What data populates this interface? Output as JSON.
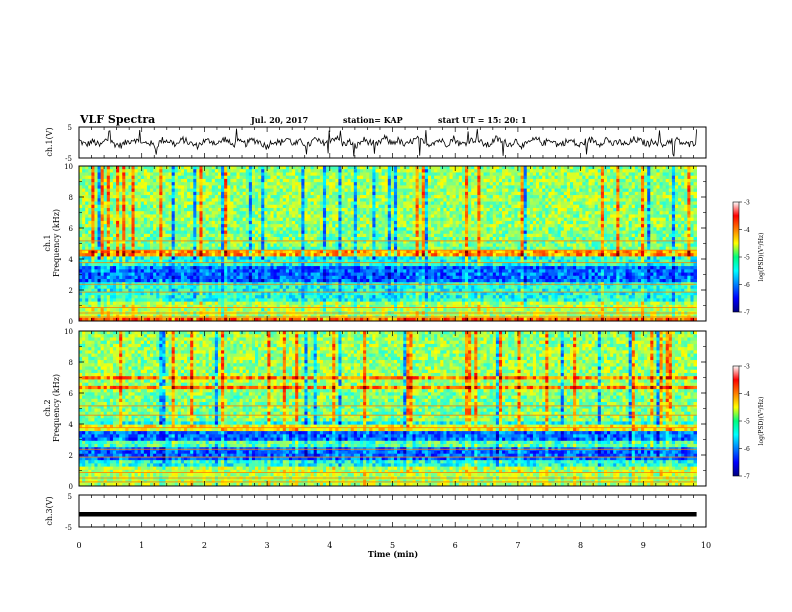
{
  "header": {
    "title": "VLF Spectra",
    "date": "Jul. 20, 2017",
    "station": "station= KAP",
    "start": "start UT = 15: 20: 1"
  },
  "chart_data": [
    {
      "type": "line",
      "name": "ch1-waveform",
      "ylabel": "ch.1(V)",
      "ylim": [
        -5,
        5
      ],
      "yticks": [
        "5",
        "-5"
      ],
      "xlim": [
        0,
        10
      ],
      "note_values": "envelope samples of the trace, volts",
      "values": [
        1.2,
        -1.5,
        0.8,
        -2.0,
        1.9,
        -0.6,
        -1.8,
        0.4,
        2.2,
        -1.1,
        0.3,
        -2.3,
        1.5,
        0.9,
        -1.4,
        1.8,
        -0.5,
        -2.1,
        0.7,
        1.1,
        -0.9,
        2.4,
        -1.6,
        0.2,
        -0.8,
        1.6,
        0.5,
        -2.4,
        1.0,
        -0.3,
        2.6,
        -1.2,
        0.6,
        -1.9,
        2.0,
        -0.7,
        1.3,
        3.0,
        -1.0,
        0.4,
        -2.2,
        1.7,
        0.1,
        -1.3,
        2.8,
        -0.4,
        1.4,
        -2.0,
        0.9,
        2.1,
        -1.7,
        0.3,
        1.5,
        -0.9,
        2.5,
        -1.4,
        0.6,
        1.9,
        -0.2,
        -1.8,
        2.3,
        0.8,
        -1.1,
        1.2,
        -2.5,
        0.5,
        1.8,
        -0.6,
        2.0,
        -1.5,
        0.2,
        1.1,
        -2.1,
        0.7,
        1.6,
        -0.8,
        2.2,
        -1.2,
        0.4,
        -1.7,
        1.9,
        0.6,
        -1.0,
        1.3,
        -2.2,
        0.9,
        1.7,
        -0.5,
        -1.4,
        0.8
      ]
    },
    {
      "type": "heatmap",
      "name": "ch1-spectrogram",
      "ylabel_line1": "ch.1",
      "ylabel_line2": "Frequency (kHz)",
      "ylim": [
        0,
        10
      ],
      "yticks": [
        "0",
        "2",
        "4",
        "6",
        "8",
        "10"
      ],
      "xlim": [
        0,
        10
      ],
      "colorbar_label": "log(PSD)(V²/Hz)",
      "colorbar_range": [
        -7,
        -3
      ],
      "colorbar_ticks": [
        "-3",
        "-4",
        "-5",
        "-6",
        "-7"
      ]
    },
    {
      "type": "heatmap",
      "name": "ch2-spectrogram",
      "ylabel_line1": "ch.2",
      "ylabel_line2": "Frequency (kHz)",
      "ylim": [
        0,
        10
      ],
      "yticks": [
        "0",
        "2",
        "4",
        "6",
        "8",
        "10"
      ],
      "xlim": [
        0,
        10
      ],
      "colorbar_label": "log(PSD)(V²/Hz)",
      "colorbar_range": [
        -7,
        -3
      ],
      "colorbar_ticks": [
        "-3",
        "-4",
        "-5",
        "-6",
        "-7"
      ]
    },
    {
      "type": "line",
      "name": "ch3-waveform",
      "ylabel": "ch.3(V)",
      "ylim": [
        -5,
        5
      ],
      "yticks": [
        "5",
        "-5"
      ],
      "xlim": [
        0,
        10
      ],
      "values": [
        -1.0,
        -1.0
      ]
    }
  ],
  "xaxis": {
    "label": "Time (min)",
    "ticks": [
      "0",
      "1",
      "2",
      "3",
      "4",
      "5",
      "6",
      "7",
      "8",
      "9",
      "10"
    ],
    "data_end": 9.85
  }
}
